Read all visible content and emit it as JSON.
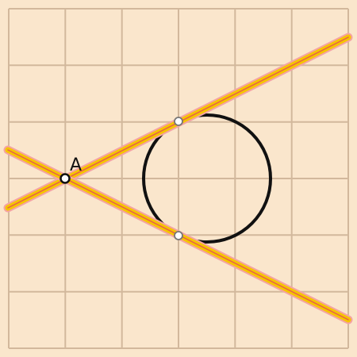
{
  "diagram": {
    "background_color": "#fae6cc",
    "grid_color": "#d2b89c",
    "circle_color": "#111111",
    "line_outer_color": "#f5a3a3",
    "line_inner_color": "#f5c400",
    "line_core_color": "#e8604a",
    "point_a_label": "A",
    "grid_cells": 6
  }
}
